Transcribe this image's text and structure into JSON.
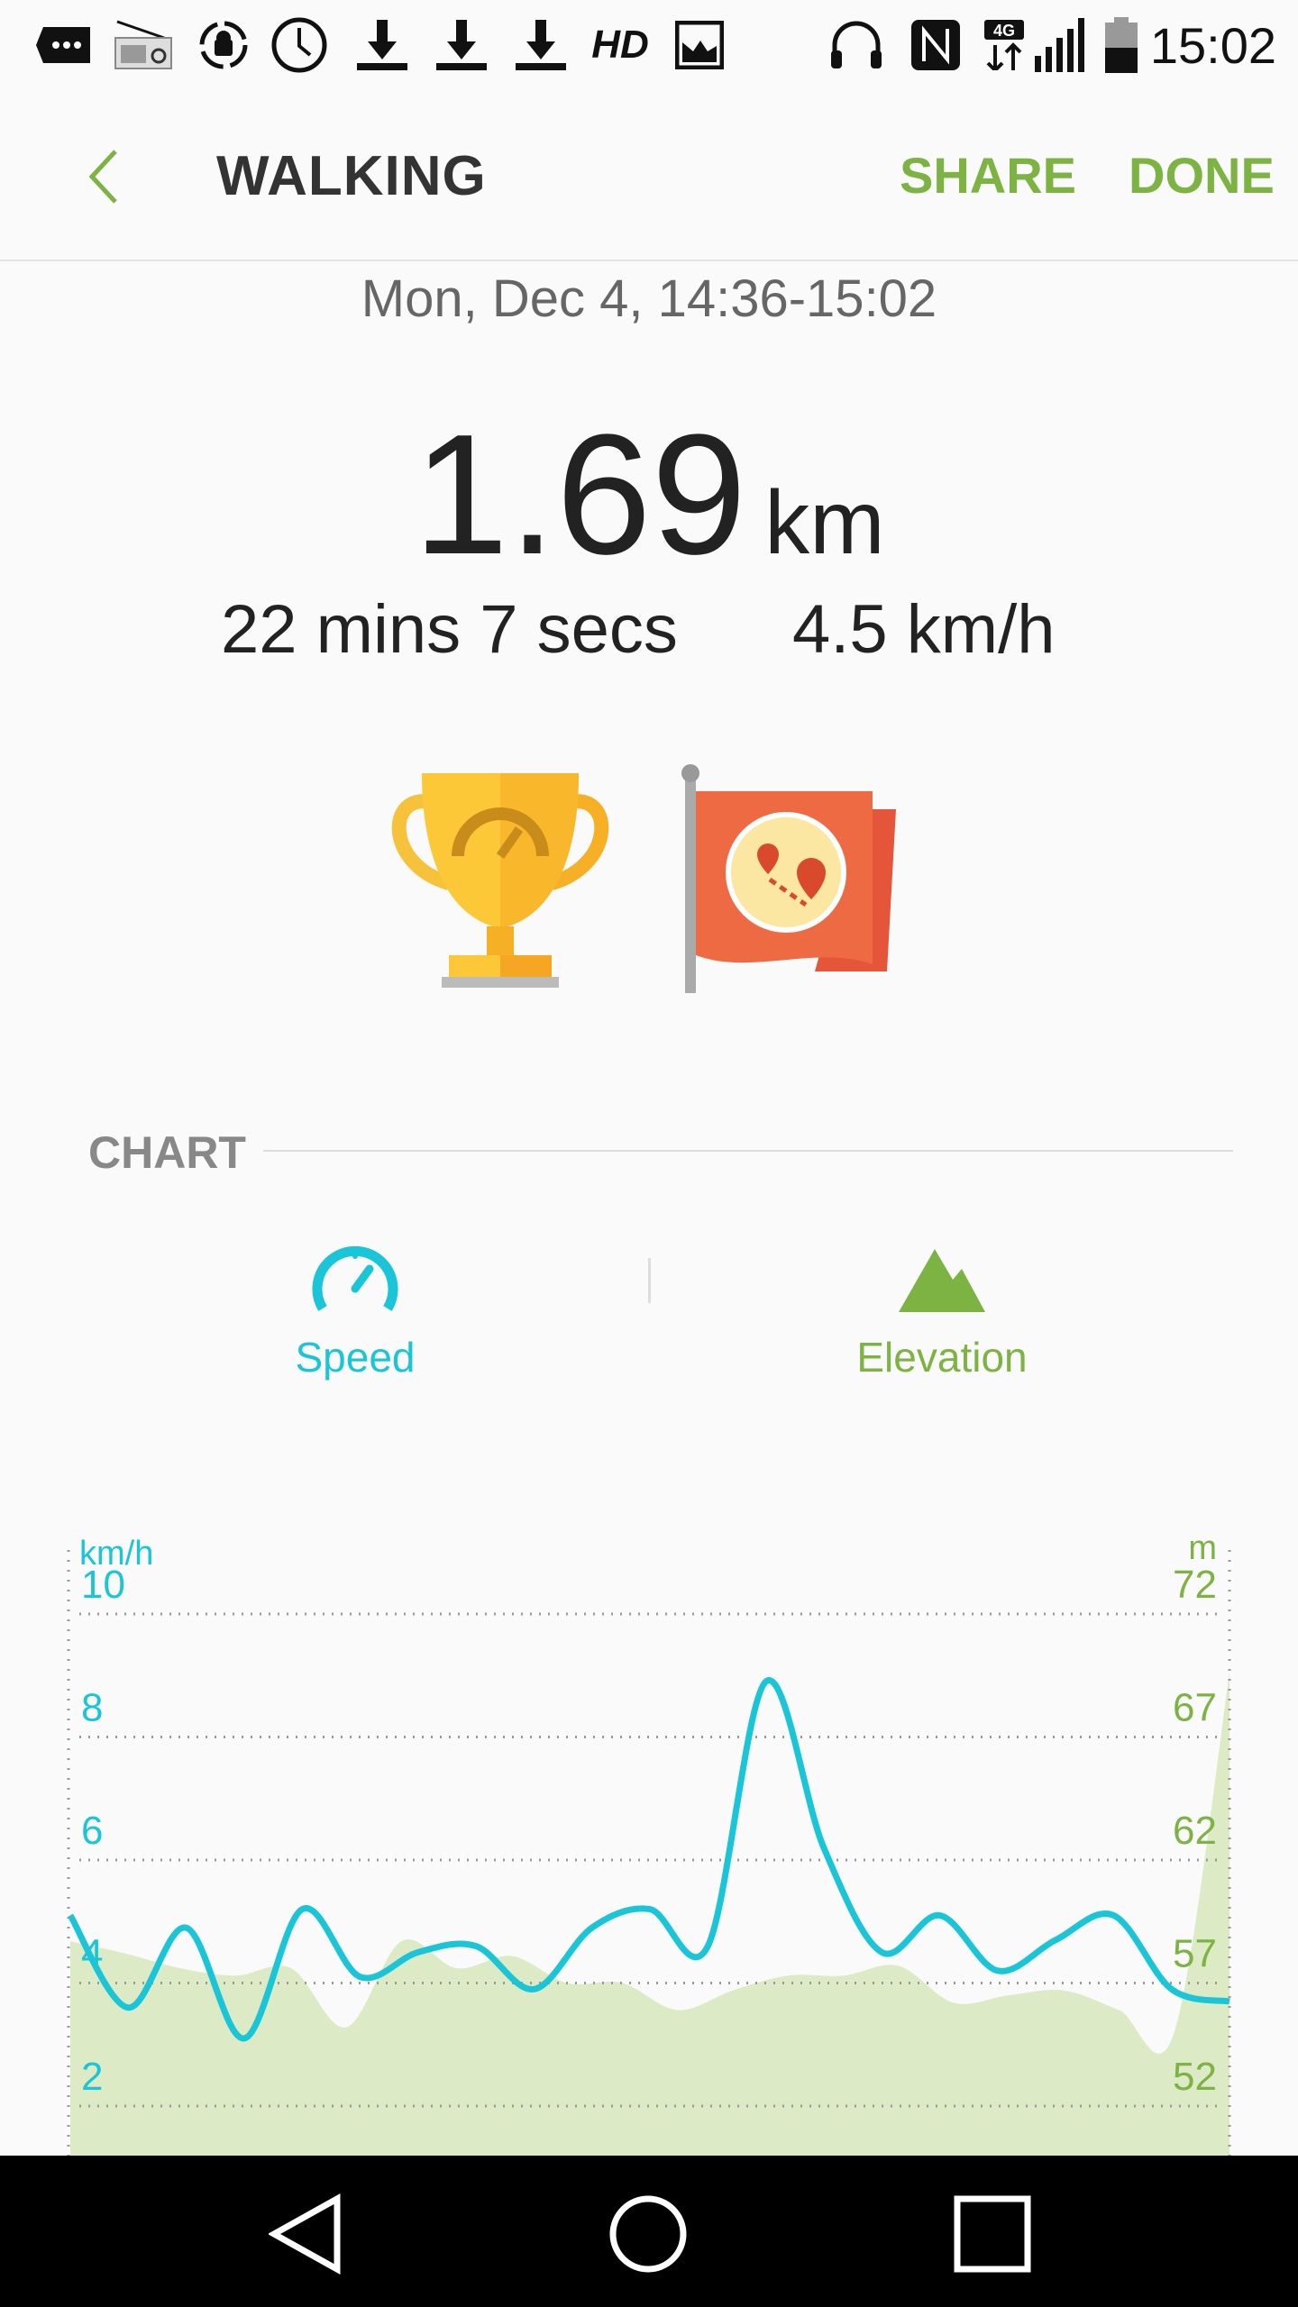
{
  "status_bar": {
    "time": "15:02",
    "network": "4G",
    "icons": [
      "more-icon",
      "radio-icon",
      "android-sync-icon",
      "alarm-icon",
      "download-icon",
      "download-icon",
      "download-icon",
      "hd-icon",
      "image-icon",
      "headphones-icon",
      "nfc-icon",
      "network-4g-icon",
      "signal-icon",
      "battery-icon"
    ],
    "hd_label": "HD"
  },
  "header": {
    "title": "WALKING",
    "share": "SHARE",
    "done": "DONE",
    "back_icon": "chevron-left-icon"
  },
  "summary": {
    "date": "Mon, Dec 4, 14:36-15:02",
    "distance": "1.69",
    "distance_unit": "km",
    "duration": "22 mins 7 secs",
    "speed": "4.5 km/h"
  },
  "badges": [
    "trophy-speed-icon",
    "flag-route-icon"
  ],
  "chart_section": {
    "label": "CHART",
    "tabs": [
      {
        "label": "Speed",
        "icon": "speedometer-icon",
        "color": "#1bc5d8"
      },
      {
        "label": "Elevation",
        "icon": "mountain-icon",
        "color": "#7cb342"
      }
    ]
  },
  "colors": {
    "accent": "#7cb342",
    "speed": "#1bc5d8",
    "elevation_fill": "#dcebc6",
    "elevation_text": "#7cb342"
  },
  "chart_data": {
    "type": "line",
    "left_axis": {
      "unit": "km/h",
      "ticks": [
        "10",
        "8",
        "6",
        "4",
        "2"
      ],
      "range": [
        2,
        10
      ]
    },
    "right_axis": {
      "unit": "m",
      "ticks": [
        "72",
        "67",
        "62",
        "57",
        "52"
      ],
      "range": [
        52,
        72
      ]
    },
    "grid": true,
    "series": [
      {
        "type": "line",
        "axis": "left",
        "values": [
          5.1,
          3.6,
          4.9,
          3.1,
          5.2,
          4.1,
          4.5,
          4.6,
          3.9,
          4.9,
          5.2,
          4.6,
          8.9,
          6.2,
          4.5,
          5.1,
          4.2,
          4.7,
          5.1,
          3.9,
          3.7
        ]
      },
      {
        "type": "area",
        "axis": "right",
        "values": [
          58.7,
          58.2,
          57.6,
          57.3,
          57.6,
          55.2,
          58.7,
          57.6,
          58.1,
          57.0,
          57.0,
          55.9,
          56.7,
          57.3,
          57.3,
          57.7,
          56.2,
          56.5,
          56.7,
          55.9,
          55.0,
          69.6
        ]
      }
    ]
  },
  "nav": {
    "back": "back-icon",
    "home": "home-icon",
    "recents": "recents-icon"
  }
}
